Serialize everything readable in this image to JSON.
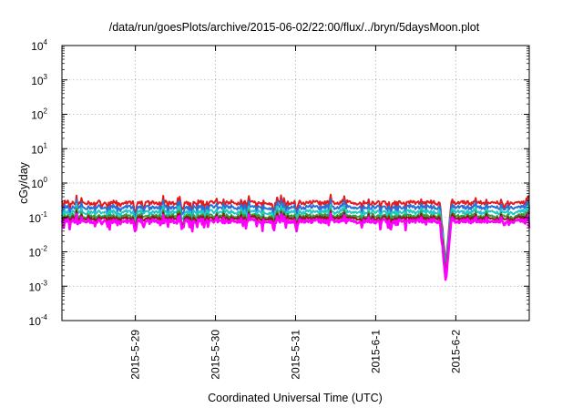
{
  "chart_data": {
    "type": "line",
    "title": "/data/run/goesPlots/archive/2015-06-02/22:00/flux/../bryn/5daysMoon.plot",
    "xlabel": "Coordinated Universal Time (UTC)",
    "ylabel": "cGy/day",
    "y_scale": "log",
    "ylim": [
      0.0001,
      10000
    ],
    "y_ticks": [
      {
        "base": "10",
        "exp": "-4"
      },
      {
        "base": "10",
        "exp": "-3"
      },
      {
        "base": "10",
        "exp": "-2"
      },
      {
        "base": "10",
        "exp": "-1"
      },
      {
        "base": "10",
        "exp": "0"
      },
      {
        "base": "10",
        "exp": "1"
      },
      {
        "base": "10",
        "exp": "2"
      },
      {
        "base": "10",
        "exp": "3"
      },
      {
        "base": "10",
        "exp": "4"
      }
    ],
    "xlim": [
      "2015-05-28 02:00",
      "2015-06-02 22:00"
    ],
    "x_ticks": [
      {
        "label": "2015-5-29",
        "date": "2015-05-29"
      },
      {
        "label": "2015-5-30",
        "date": "2015-05-30"
      },
      {
        "label": "2015-5-31",
        "date": "2015-05-31"
      },
      {
        "label": "2015-6-1",
        "date": "2015-06-01"
      },
      {
        "label": "2015-6-2",
        "date": "2015-06-02"
      }
    ],
    "grid": true,
    "legend": "none",
    "series": [
      {
        "color": "#e41a1c",
        "base": 0.27,
        "dip_factor": 0.55
      },
      {
        "color": "#2b6fd6",
        "base": 0.2,
        "dip_factor": 0.6
      },
      {
        "color": "#20c8c8",
        "base": 0.145,
        "dip_factor": 0.6
      },
      {
        "color": "#3a9a3a",
        "base": 0.11,
        "dip_factor": 0.65
      },
      {
        "color": "#8b1a1a",
        "base": 0.095,
        "dip_factor": 0.65
      },
      {
        "color": "#ff00ff",
        "base": 0.078,
        "dip_factor": 0.45
      }
    ],
    "events": [
      {
        "time": "2015-05-28 14:00",
        "min_value": 0.05
      },
      {
        "time": "2015-05-29 00:00",
        "min_value": 0.026
      },
      {
        "time": "2015-05-29 02:30",
        "min_value": 0.042
      },
      {
        "time": "2015-05-31 00:15",
        "min_value": 0.03
      },
      {
        "time": "2015-06-01 04:30",
        "min_value": 0.035
      },
      {
        "time": "2015-06-01 21:00",
        "min_value": 0.001
      },
      {
        "time": "2015-06-02 14:30",
        "min_value": 0.045
      }
    ]
  }
}
